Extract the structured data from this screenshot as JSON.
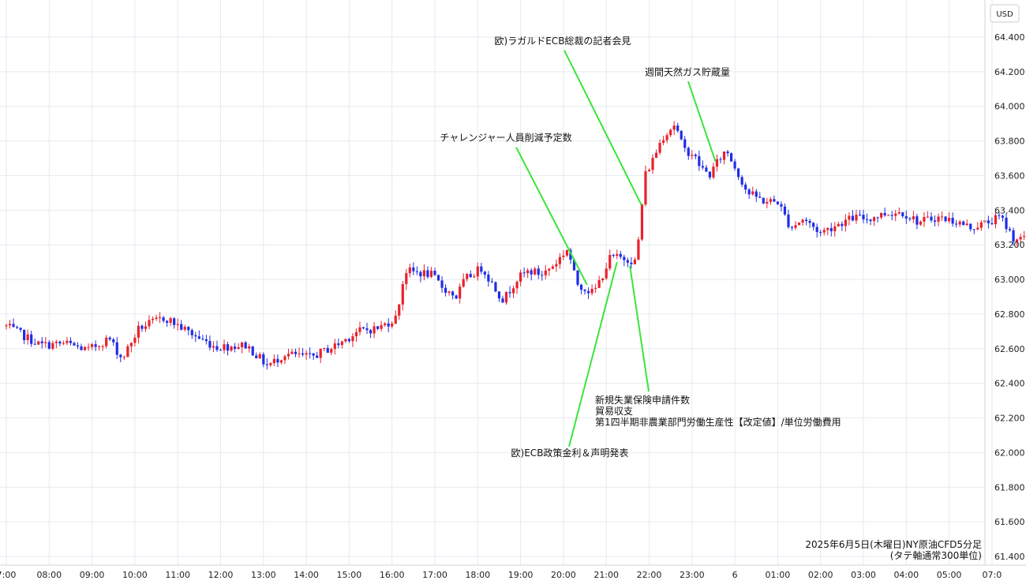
{
  "chart_data": {
    "type": "candlestick",
    "title": "2025年6月5日(木曜日)NY原油CFD5分足",
    "subtitle": "(タテ軸通常300単位)",
    "currency": "USD",
    "grid": true,
    "colors": {
      "up": "#e8222b",
      "down": "#1f2de6",
      "grid": "#e6eaf0",
      "annotation_line": "#39e53a"
    },
    "ylim": [
      61.4,
      64.5
    ],
    "y_ticks": [
      "61.400",
      "61.600",
      "61.800",
      "62.000",
      "62.200",
      "62.400",
      "62.600",
      "62.800",
      "63.000",
      "63.200",
      "63.400",
      "63.600",
      "63.800",
      "64.000",
      "64.200",
      "64.400"
    ],
    "x_ticks": [
      "7:00",
      "08:00",
      "09:00",
      "10:00",
      "11:00",
      "12:00",
      "13:00",
      "14:00",
      "15:00",
      "16:00",
      "17:00",
      "18:00",
      "19:00",
      "20:00",
      "21:00",
      "22:00",
      "23:00",
      "6",
      "01:00",
      "02:00",
      "03:00",
      "04:00",
      "05:00",
      "07:0"
    ],
    "x_hours_start": 7.0,
    "x_hours_end": 31.15,
    "close_anchors": [
      [
        7.0,
        62.73
      ],
      [
        7.8,
        62.62
      ],
      [
        8.4,
        62.63
      ],
      [
        8.9,
        62.59
      ],
      [
        9.4,
        62.66
      ],
      [
        9.7,
        62.54
      ],
      [
        10.1,
        62.72
      ],
      [
        10.7,
        62.78
      ],
      [
        11.1,
        62.72
      ],
      [
        11.5,
        62.66
      ],
      [
        11.9,
        62.61
      ],
      [
        12.6,
        62.62
      ],
      [
        13.1,
        62.5
      ],
      [
        13.5,
        62.57
      ],
      [
        14.1,
        62.55
      ],
      [
        14.7,
        62.62
      ],
      [
        15.2,
        62.7
      ],
      [
        15.7,
        62.72
      ],
      [
        16.1,
        62.78
      ],
      [
        16.3,
        63.05
      ],
      [
        16.9,
        63.03
      ],
      [
        17.2,
        62.95
      ],
      [
        17.5,
        62.9
      ],
      [
        17.7,
        63.0
      ],
      [
        18.1,
        63.07
      ],
      [
        18.4,
        62.95
      ],
      [
        18.6,
        62.88
      ],
      [
        18.9,
        63.0
      ],
      [
        19.2,
        63.05
      ],
      [
        19.5,
        63.03
      ],
      [
        19.8,
        63.09
      ],
      [
        20.1,
        63.18
      ],
      [
        20.3,
        62.98
      ],
      [
        20.5,
        62.95
      ],
      [
        20.7,
        62.92
      ],
      [
        20.9,
        63.02
      ],
      [
        21.1,
        63.13
      ],
      [
        21.5,
        63.12
      ],
      [
        21.7,
        63.1
      ],
      [
        21.8,
        63.35
      ],
      [
        21.9,
        63.6
      ],
      [
        22.1,
        63.7
      ],
      [
        22.3,
        63.82
      ],
      [
        22.6,
        63.9
      ],
      [
        22.8,
        63.75
      ],
      [
        23.0,
        63.73
      ],
      [
        23.2,
        63.65
      ],
      [
        23.4,
        63.6
      ],
      [
        23.6,
        63.68
      ],
      [
        23.8,
        63.75
      ],
      [
        24.1,
        63.6
      ],
      [
        24.3,
        63.5
      ],
      [
        24.7,
        63.45
      ],
      [
        25.0,
        63.45
      ],
      [
        25.3,
        63.3
      ],
      [
        25.6,
        63.35
      ],
      [
        26.0,
        63.27
      ],
      [
        26.4,
        63.32
      ],
      [
        26.8,
        63.36
      ],
      [
        27.1,
        63.35
      ],
      [
        27.5,
        63.38
      ],
      [
        27.9,
        63.39
      ],
      [
        28.3,
        63.33
      ],
      [
        28.7,
        63.36
      ],
      [
        29.1,
        63.34
      ],
      [
        29.5,
        63.3
      ],
      [
        29.9,
        63.33
      ],
      [
        30.2,
        63.36
      ],
      [
        30.5,
        63.24
      ],
      [
        31.0,
        63.22
      ],
      [
        31.15,
        63.17
      ]
    ],
    "annotations": [
      {
        "label": "欧)ラガルドECB総裁の記者会見",
        "time": 21.82,
        "price": 63.43,
        "label_price": 64.36
      },
      {
        "label": "週間天然ガス貯蔵量",
        "time": 23.55,
        "price": 63.68,
        "label_price": 64.18
      },
      {
        "label": "チャレンジャー人員削減予定数",
        "time": 20.55,
        "price": 62.97,
        "label_price": 63.8
      },
      {
        "label": "欧)ECB政策金利＆声明発表",
        "time": 21.25,
        "price": 63.1,
        "label_price": 61.98
      },
      {
        "label": "新規失業保険申請件数",
        "time": 21.55,
        "price": 63.08,
        "label_price": 62.42
      }
    ],
    "annotation_block": [
      "新規失業保険申請件数",
      "貿易収支",
      "第1四半期非農業部門労働生産性【改定値】/単位労働費用"
    ]
  }
}
